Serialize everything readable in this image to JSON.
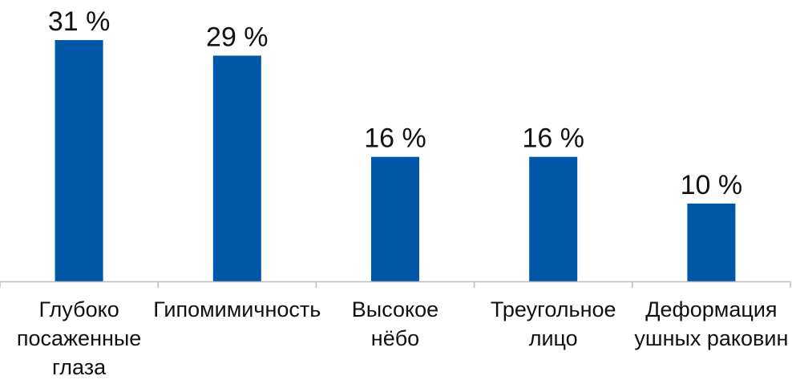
{
  "chart_data": {
    "type": "bar",
    "categories": [
      [
        "Глубоко",
        "посаженные",
        "глаза"
      ],
      [
        "Гипомимичность"
      ],
      [
        "Высокое",
        "нёбо"
      ],
      [
        "Треугольное",
        "лицо"
      ],
      [
        "Деформация",
        "ушных раковин"
      ]
    ],
    "values": [
      31,
      29,
      16,
      16,
      10
    ],
    "value_labels": [
      "31 %",
      "29 %",
      "16 %",
      "16 %",
      "10 %"
    ],
    "bar_color": "#0057a8",
    "axis_color": "#bdbdbd",
    "ylim": [
      0,
      31
    ],
    "grid": false,
    "legend": "none"
  }
}
